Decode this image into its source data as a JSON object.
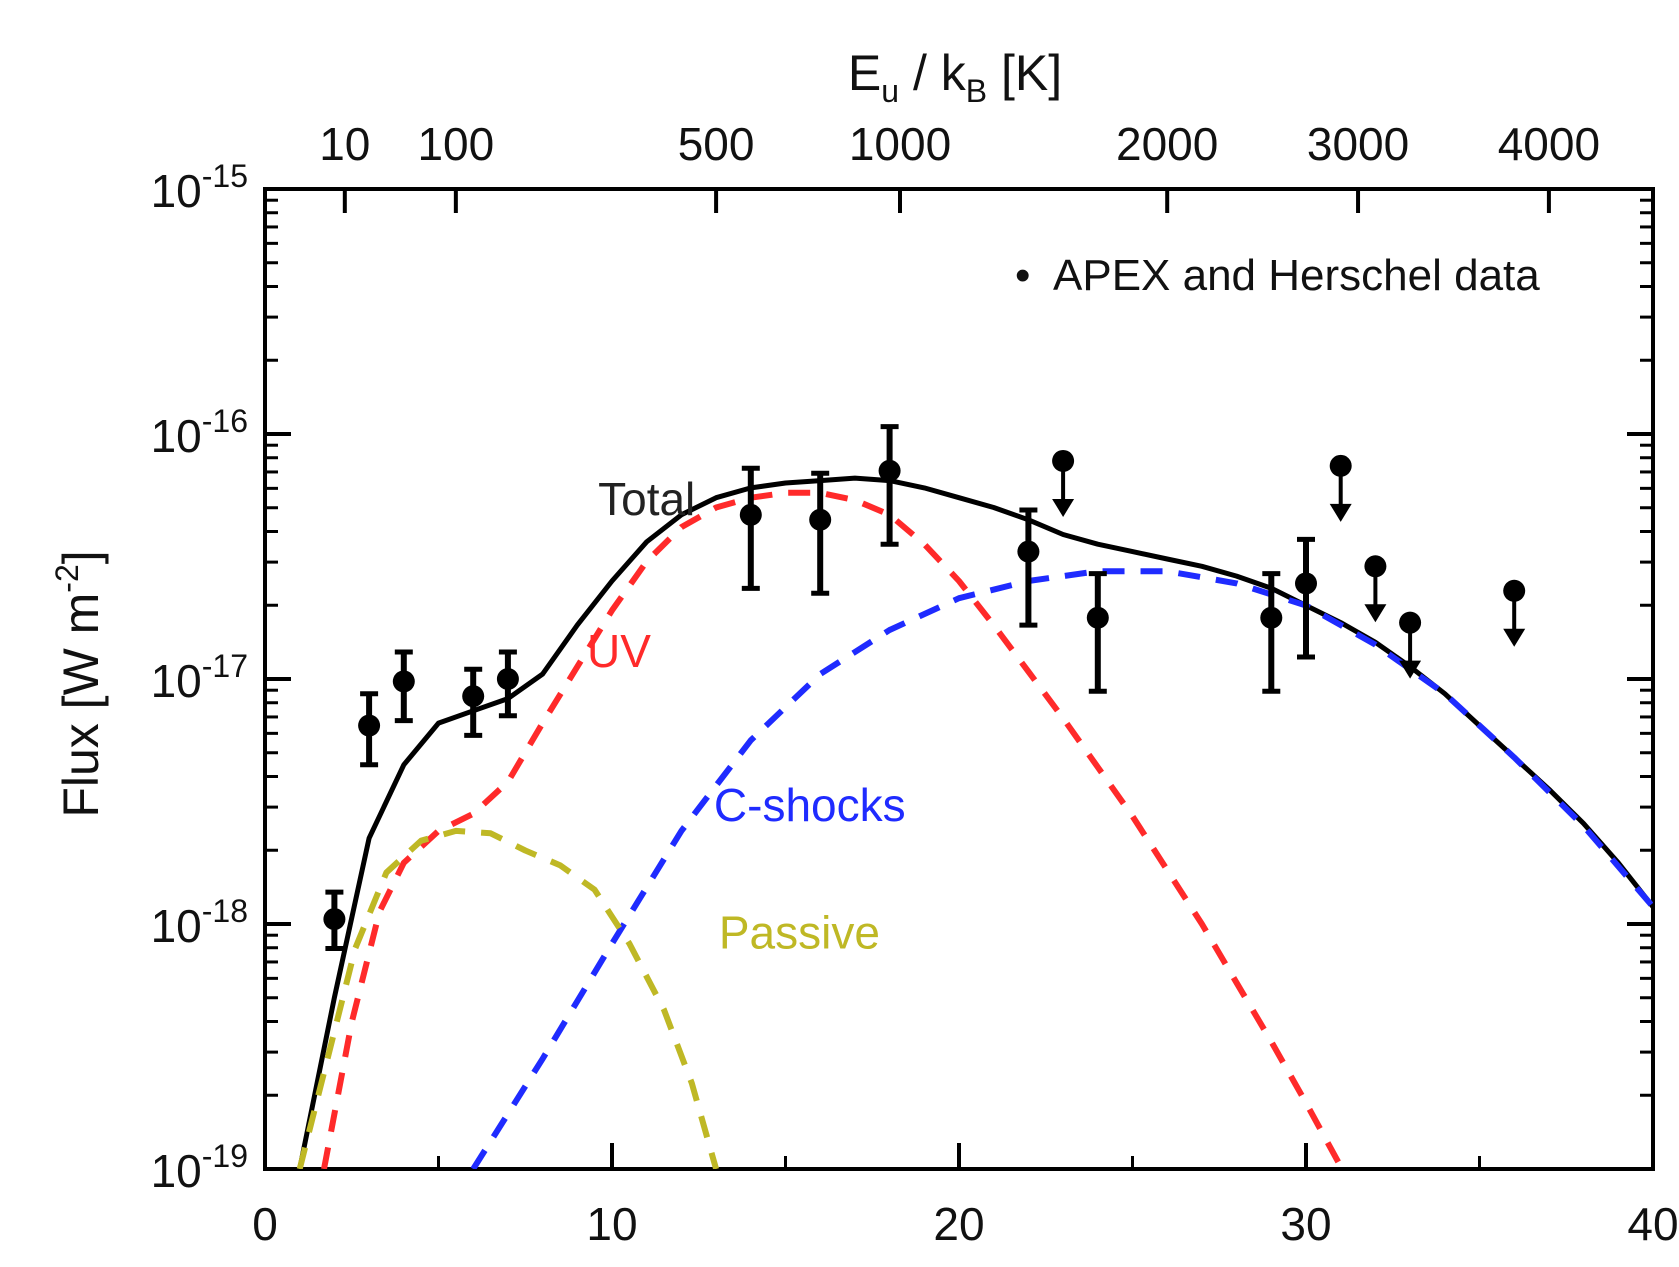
{
  "chart_data": {
    "type": "line",
    "top_axis": {
      "label_main": "E",
      "label_sub1": "u",
      "label_mid": " / k",
      "label_sub2": "B",
      "label_end": " [K]",
      "ticks": [
        {
          "value": 10,
          "label": "10"
        },
        {
          "value": 100,
          "label": "100"
        },
        {
          "value": 500,
          "label": "500"
        },
        {
          "value": 1000,
          "label": "1000"
        },
        {
          "value": 2000,
          "label": "2000"
        },
        {
          "value": 3000,
          "label": "3000"
        },
        {
          "value": 4000,
          "label": "4000"
        }
      ],
      "tick_positions_j": [
        2.3,
        5.5,
        13.0,
        18.3,
        26.0,
        31.5,
        37.0
      ]
    },
    "y_axis": {
      "label": "Flux [W m",
      "label_sup": "-2",
      "label_end": "]",
      "scale": "log",
      "range": [
        -19,
        -15
      ],
      "ticks": [
        {
          "exp": -15,
          "base": "10",
          "sup": "-15"
        },
        {
          "exp": -16,
          "base": "10",
          "sup": "-16"
        },
        {
          "exp": -17,
          "base": "10",
          "sup": "-17"
        },
        {
          "exp": -18,
          "base": "10",
          "sup": "-18"
        },
        {
          "exp": -19,
          "base": "10",
          "sup": "-19"
        }
      ]
    },
    "x_axis": {
      "range": [
        0,
        40
      ],
      "ticks": [
        0,
        10,
        20,
        30,
        40
      ],
      "tick_labels": [
        "0",
        "10",
        "20",
        "30",
        "40"
      ]
    },
    "series": [
      {
        "name": "Total",
        "color": "#000000",
        "style": "solid",
        "points": [
          [
            1,
            -19.0
          ],
          [
            2,
            -18.3
          ],
          [
            3,
            -17.65
          ],
          [
            4,
            -17.35
          ],
          [
            5,
            -17.18
          ],
          [
            6,
            -17.13
          ],
          [
            7,
            -17.08
          ],
          [
            8,
            -16.98
          ],
          [
            9,
            -16.78
          ],
          [
            10,
            -16.6
          ],
          [
            11,
            -16.44
          ],
          [
            12,
            -16.33
          ],
          [
            13,
            -16.26
          ],
          [
            14,
            -16.22
          ],
          [
            15,
            -16.2
          ],
          [
            16,
            -16.19
          ],
          [
            17,
            -16.18
          ],
          [
            18,
            -16.19
          ],
          [
            19,
            -16.22
          ],
          [
            20,
            -16.26
          ],
          [
            21,
            -16.3
          ],
          [
            22,
            -16.35
          ],
          [
            23,
            -16.41
          ],
          [
            24,
            -16.45
          ],
          [
            25,
            -16.48
          ],
          [
            26,
            -16.51
          ],
          [
            27,
            -16.54
          ],
          [
            28,
            -16.58
          ],
          [
            29,
            -16.63
          ],
          [
            30,
            -16.7
          ],
          [
            31,
            -16.77
          ],
          [
            32,
            -16.85
          ],
          [
            33,
            -16.95
          ],
          [
            34,
            -17.06
          ],
          [
            35,
            -17.19
          ],
          [
            36,
            -17.32
          ],
          [
            37,
            -17.45
          ],
          [
            38,
            -17.59
          ],
          [
            39,
            -17.75
          ],
          [
            40,
            -17.93
          ]
        ]
      },
      {
        "name": "UV",
        "color": "#ff2a2a",
        "style": "dashed",
        "points": [
          [
            1.7,
            -19.0
          ],
          [
            2.5,
            -18.4
          ],
          [
            3.3,
            -17.95
          ],
          [
            4,
            -17.75
          ],
          [
            5,
            -17.62
          ],
          [
            6,
            -17.55
          ],
          [
            7,
            -17.42
          ],
          [
            8,
            -17.18
          ],
          [
            9,
            -16.95
          ],
          [
            10,
            -16.72
          ],
          [
            11,
            -16.52
          ],
          [
            12,
            -16.38
          ],
          [
            13,
            -16.3
          ],
          [
            14,
            -16.26
          ],
          [
            15,
            -16.24
          ],
          [
            16,
            -16.24
          ],
          [
            17,
            -16.27
          ],
          [
            18,
            -16.33
          ],
          [
            19,
            -16.45
          ],
          [
            20,
            -16.6
          ],
          [
            21,
            -16.78
          ],
          [
            22,
            -16.97
          ],
          [
            23,
            -17.16
          ],
          [
            24,
            -17.36
          ],
          [
            25,
            -17.56
          ],
          [
            26,
            -17.78
          ],
          [
            27,
            -18.0
          ],
          [
            28,
            -18.24
          ],
          [
            29,
            -18.48
          ],
          [
            30,
            -18.73
          ],
          [
            31,
            -18.99
          ],
          [
            31.2,
            -19.05
          ]
        ]
      },
      {
        "name": "C-shocks",
        "color": "#1f2bff",
        "style": "dashed",
        "points": [
          [
            6,
            -19.0
          ],
          [
            8,
            -18.55
          ],
          [
            10,
            -18.08
          ],
          [
            12,
            -17.62
          ],
          [
            14,
            -17.25
          ],
          [
            16,
            -16.98
          ],
          [
            18,
            -16.8
          ],
          [
            20,
            -16.67
          ],
          [
            22,
            -16.6
          ],
          [
            24,
            -16.56
          ],
          [
            26,
            -16.56
          ],
          [
            28,
            -16.61
          ],
          [
            30,
            -16.7
          ],
          [
            32,
            -16.86
          ],
          [
            34,
            -17.06
          ],
          [
            36,
            -17.32
          ],
          [
            38,
            -17.6
          ],
          [
            40,
            -17.93
          ]
        ]
      },
      {
        "name": "Passive",
        "color": "#bfb825",
        "style": "dashed",
        "points": [
          [
            1,
            -19.0
          ],
          [
            1.8,
            -18.55
          ],
          [
            2.6,
            -18.1
          ],
          [
            3.5,
            -17.79
          ],
          [
            4.5,
            -17.66
          ],
          [
            5.5,
            -17.62
          ],
          [
            6.5,
            -17.63
          ],
          [
            7.5,
            -17.7
          ],
          [
            8.5,
            -17.76
          ],
          [
            9.5,
            -17.86
          ],
          [
            10.5,
            -18.08
          ],
          [
            11.5,
            -18.35
          ],
          [
            12.3,
            -18.65
          ],
          [
            13,
            -19.0
          ]
        ]
      }
    ],
    "data_points": [
      {
        "x": 2,
        "y": -17.98,
        "err_lo": -18.1,
        "err_hi": -17.87
      },
      {
        "x": 3,
        "y": -17.19,
        "err_lo": -17.35,
        "err_hi": -17.06
      },
      {
        "x": 4,
        "y": -17.01,
        "err_lo": -17.17,
        "err_hi": -16.89
      },
      {
        "x": 6,
        "y": -17.07,
        "err_lo": -17.23,
        "err_hi": -16.96
      },
      {
        "x": 7,
        "y": -17.0,
        "err_lo": -17.15,
        "err_hi": -16.89
      },
      {
        "x": 14,
        "y": -16.33,
        "err_lo": -16.63,
        "err_hi": -16.14
      },
      {
        "x": 16,
        "y": -16.35,
        "err_lo": -16.65,
        "err_hi": -16.16
      },
      {
        "x": 18,
        "y": -16.15,
        "err_lo": -16.45,
        "err_hi": -15.97
      },
      {
        "x": 22,
        "y": -16.48,
        "err_lo": -16.78,
        "err_hi": -16.31
      },
      {
        "x": 24,
        "y": -16.75,
        "err_lo": -17.05,
        "err_hi": -16.57
      },
      {
        "x": 29,
        "y": -16.75,
        "err_lo": -17.05,
        "err_hi": -16.57
      },
      {
        "x": 30,
        "y": -16.61,
        "err_lo": -16.91,
        "err_hi": -16.43
      }
    ],
    "upper_limits": [
      {
        "x": 23,
        "y": -16.11
      },
      {
        "x": 31,
        "y": -16.13
      },
      {
        "x": 32,
        "y": -16.54
      },
      {
        "x": 33,
        "y": -16.77
      },
      {
        "x": 36,
        "y": -16.64
      }
    ],
    "legend": {
      "marker": "•",
      "text": "APEX and Herschel data",
      "placement": "top-right"
    },
    "series_labels": [
      {
        "name": "Total",
        "text": "Total",
        "color": "#222222",
        "x": 11.0,
        "y": -16.33
      },
      {
        "name": "UV",
        "text": "UV",
        "color": "#ff2a2a",
        "x": 10.2,
        "y": -16.95
      },
      {
        "name": "C-shocks",
        "text": "C-shocks",
        "color": "#1f2bff",
        "x": 15.7,
        "y": -17.58
      },
      {
        "name": "Passive",
        "text": "Passive",
        "color": "#bfb825",
        "x": 15.4,
        "y": -18.1
      }
    ]
  }
}
